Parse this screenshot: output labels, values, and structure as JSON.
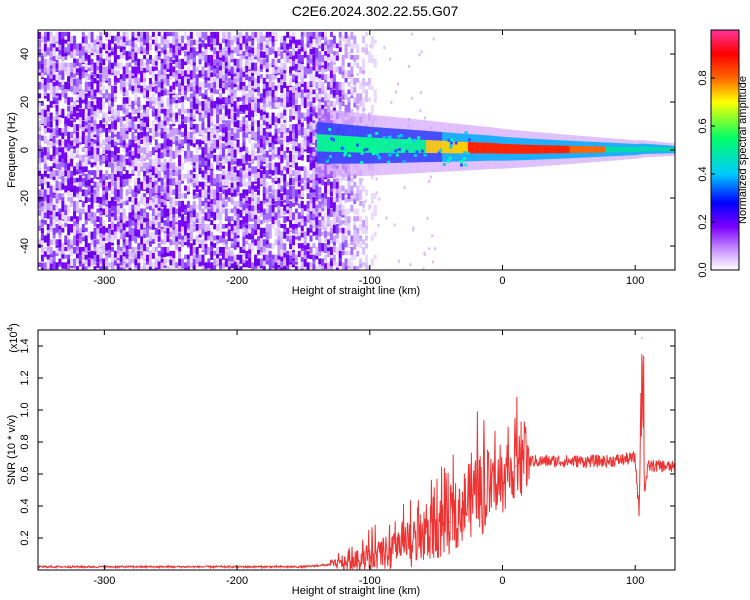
{
  "title": "C2E6.2024.302.22.55.G07",
  "chart_data": [
    {
      "type": "heatmap",
      "xlabel": "Height of straight line (km)",
      "ylabel": "Frequency (Hz)",
      "xlim": [
        -350,
        130
      ],
      "ylim": [
        -50,
        50
      ],
      "x_ticks": [
        -300,
        -200,
        -100,
        0,
        100
      ],
      "y_ticks": [
        -40,
        -20,
        0,
        20,
        40
      ],
      "noise_region_x": [
        -350,
        -110
      ],
      "signal_start_x": -140,
      "colorbar": {
        "label": "Normalized spectral amplitude",
        "range": [
          0,
          1
        ],
        "ticks": [
          0.0,
          0.2,
          0.4,
          0.6,
          0.8
        ],
        "tick_labels": [
          "0.0",
          "0.2",
          "0.4",
          "0.6",
          "0.8"
        ],
        "colors": [
          "#ffffff",
          "#cc99ff",
          "#7a00ff",
          "#0000ff",
          "#00ccff",
          "#00ff66",
          "#ffff00",
          "#ff6600",
          "#ff0000",
          "#ff3399"
        ]
      },
      "ridge": {
        "x": [
          -140,
          -100,
          -60,
          -30,
          -10,
          0,
          20,
          60,
          100,
          105,
          130
        ],
        "y": [
          3,
          2,
          1.5,
          1,
          0.8,
          0.5,
          0.3,
          0.2,
          0.2,
          0.5,
          0.2
        ]
      }
    },
    {
      "type": "line",
      "xlabel": "Height of straight line (km)",
      "ylabel": "SNR (10 * v/v)",
      "y_scale_label": "(x10",
      "y_scale_exp": "4",
      "y_scale_close": ")",
      "xlim": [
        -350,
        130
      ],
      "ylim": [
        0,
        1.5
      ],
      "x_ticks": [
        -300,
        -200,
        -100,
        0,
        100
      ],
      "y_ticks": [
        0.2,
        0.4,
        0.6,
        0.8,
        1.0,
        1.2,
        1.4
      ],
      "y_tick_labels": [
        "0.2",
        "0.4",
        "0.6",
        "0.8",
        "1.0",
        "1.2",
        "1.4"
      ],
      "series": [
        {
          "color": "#ee3333",
          "x": [
            -350,
            -300,
            -250,
            -200,
            -150,
            -120,
            -100,
            -80,
            -60,
            -50,
            -40,
            -30,
            -20,
            -10,
            0,
            5,
            10,
            20,
            30,
            40,
            60,
            80,
            100,
            103,
            105,
            107,
            110,
            120,
            130
          ],
          "y": [
            0.02,
            0.02,
            0.02,
            0.02,
            0.02,
            0.04,
            0.08,
            0.12,
            0.2,
            0.25,
            0.3,
            0.4,
            0.45,
            0.5,
            0.55,
            0.6,
            0.65,
            0.68,
            0.68,
            0.68,
            0.68,
            0.68,
            0.7,
            0.35,
            1.45,
            0.5,
            0.65,
            0.65,
            0.64
          ]
        }
      ]
    }
  ]
}
